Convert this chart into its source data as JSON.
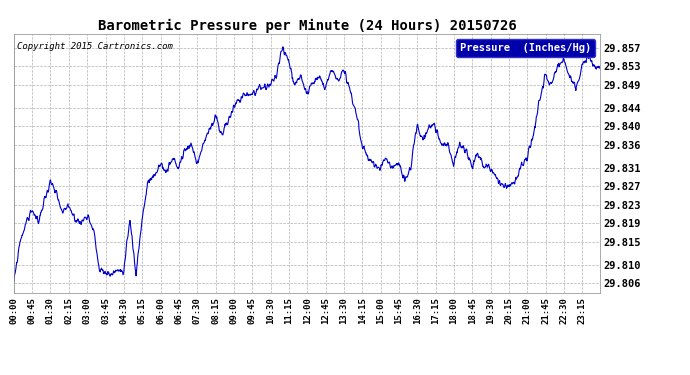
{
  "title": "Barometric Pressure per Minute (24 Hours) 20150726",
  "copyright": "Copyright 2015 Cartronics.com",
  "legend_label": "Pressure  (Inches/Hg)",
  "line_color": "#0000cc",
  "background_color": "#ffffff",
  "plot_bg_color": "#ffffff",
  "grid_color": "#aaaaaa",
  "yticks": [
    29.806,
    29.81,
    29.815,
    29.819,
    29.823,
    29.827,
    29.831,
    29.836,
    29.84,
    29.844,
    29.849,
    29.853,
    29.857
  ],
  "ylim": [
    29.804,
    29.86
  ],
  "xtick_labels": [
    "00:00",
    "00:45",
    "01:30",
    "02:15",
    "03:00",
    "03:45",
    "04:30",
    "05:15",
    "06:00",
    "06:45",
    "07:30",
    "08:15",
    "09:00",
    "09:45",
    "10:30",
    "11:15",
    "12:00",
    "12:45",
    "13:30",
    "14:15",
    "15:00",
    "15:45",
    "16:30",
    "17:15",
    "18:00",
    "18:45",
    "19:30",
    "20:15",
    "21:00",
    "21:45",
    "22:30",
    "23:15"
  ]
}
